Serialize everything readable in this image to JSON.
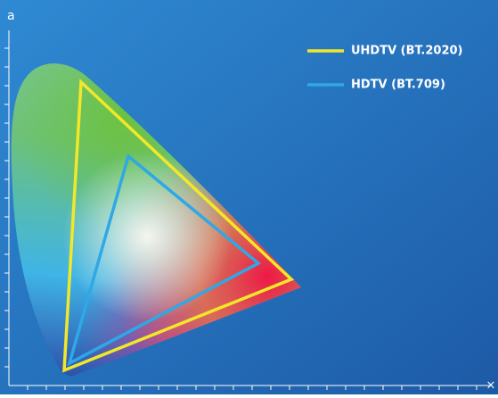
{
  "axes": {
    "y_label": "a",
    "x_label": "×"
  },
  "legend": [
    {
      "label": "UHDTV (BT.2020)",
      "color": "#f2e829"
    },
    {
      "label": "HDTV (BT.709)",
      "color": "#2ea8e6"
    }
  ]
}
